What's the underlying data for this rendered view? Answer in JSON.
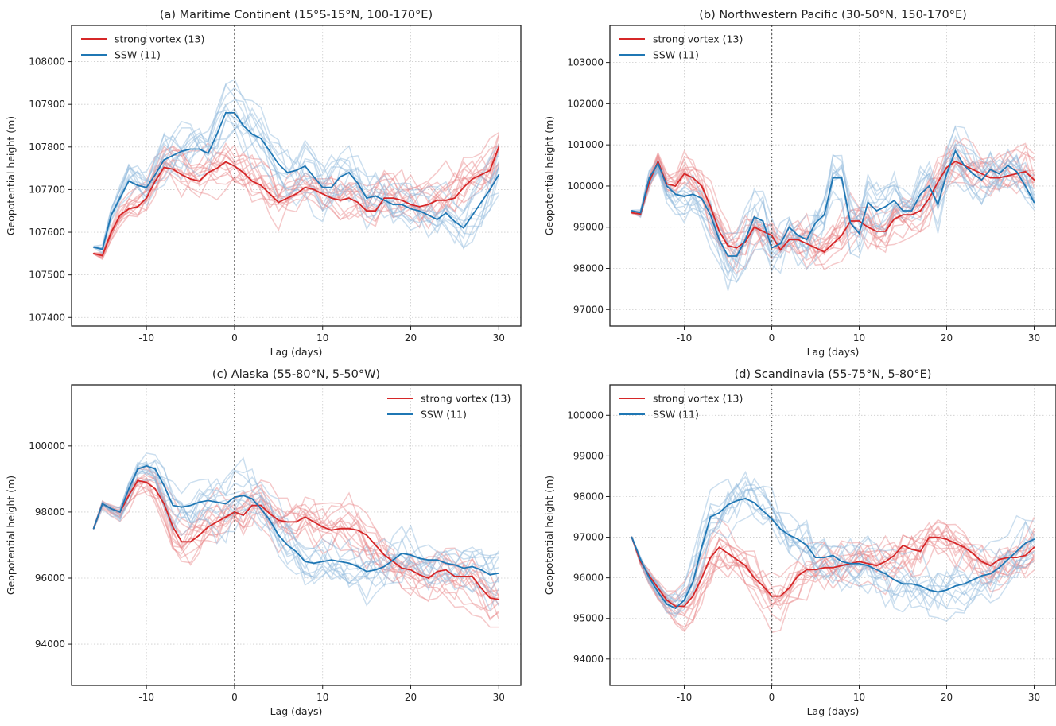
{
  "figure": {
    "xlabel": "Lag (days)",
    "ylabel": "Geopotential height (m)",
    "legend": {
      "strong_label": "strong vortex (13)",
      "ssw_label": "SSW (11)"
    },
    "colors": {
      "strong": "#d62728",
      "ssw": "#1f77b4",
      "strong_members": "#e8888a",
      "ssw_members": "#8fb8dc",
      "zero_line": "#666666",
      "grid": "#cccccc"
    }
  },
  "chart_data": [
    {
      "type": "line",
      "title": "(a) Maritime Continent (15°S-15°N, 100-170°E)",
      "xlabel": "Lag (days)",
      "ylabel": "Geopotential height (m)",
      "xlim": [
        -18.5,
        32.5
      ],
      "ylim": [
        107380,
        108085
      ],
      "xticks": [
        -10,
        0,
        10,
        20,
        30
      ],
      "yticks": [
        107400,
        107500,
        107600,
        107700,
        107800,
        107900,
        108000
      ],
      "grid": true,
      "legend_position": "top-left",
      "x": [
        -16,
        -15,
        -14,
        -13,
        -12,
        -11,
        -10,
        -9,
        -8,
        -7,
        -6,
        -5,
        -4,
        -3,
        -2,
        -1,
        0,
        1,
        2,
        3,
        4,
        5,
        6,
        7,
        8,
        9,
        10,
        11,
        12,
        13,
        14,
        15,
        16,
        17,
        18,
        19,
        20,
        21,
        22,
        23,
        24,
        25,
        26,
        27,
        28,
        29,
        30
      ],
      "series": [
        {
          "name": "strong vortex (13)",
          "values": [
            107550,
            107545,
            107600,
            107640,
            107655,
            107660,
            107680,
            107720,
            107752,
            107748,
            107735,
            107725,
            107720,
            107740,
            107750,
            107765,
            107755,
            107740,
            107720,
            107710,
            107690,
            107670,
            107680,
            107690,
            107705,
            107700,
            107690,
            107680,
            107675,
            107680,
            107670,
            107650,
            107650,
            107680,
            107680,
            107675,
            107665,
            107660,
            107665,
            107675,
            107675,
            107680,
            107705,
            107725,
            107735,
            107745,
            107800
          ]
        },
        {
          "name": "SSW (11)",
          "values": [
            107565,
            107560,
            107640,
            107680,
            107720,
            107710,
            107705,
            107735,
            107770,
            107780,
            107790,
            107795,
            107795,
            107785,
            107830,
            107880,
            107880,
            107850,
            107830,
            107820,
            107790,
            107760,
            107740,
            107745,
            107755,
            107730,
            107705,
            107705,
            107730,
            107740,
            107715,
            107680,
            107685,
            107675,
            107665,
            107665,
            107655,
            107650,
            107640,
            107630,
            107645,
            107625,
            107610,
            107640,
            107670,
            107700,
            107735
          ]
        }
      ]
    },
    {
      "type": "line",
      "title": "(b) Northwestern Pacific (30-50°N, 150-170°E)",
      "xlabel": "Lag (days)",
      "ylabel": "Geopotential height (m)",
      "xlim": [
        -18.5,
        32.5
      ],
      "ylim": [
        96600,
        103900
      ],
      "xticks": [
        -10,
        0,
        10,
        20,
        30
      ],
      "yticks": [
        97000,
        98000,
        99000,
        100000,
        101000,
        102000,
        103000
      ],
      "grid": true,
      "legend_position": "top-left",
      "x": [
        -16,
        -15,
        -14,
        -13,
        -12,
        -11,
        -10,
        -9,
        -8,
        -7,
        -6,
        -5,
        -4,
        -3,
        -2,
        -1,
        0,
        1,
        2,
        3,
        4,
        5,
        6,
        7,
        8,
        9,
        10,
        11,
        12,
        13,
        14,
        15,
        16,
        17,
        18,
        19,
        20,
        21,
        22,
        23,
        24,
        25,
        26,
        27,
        28,
        29,
        30
      ],
      "series": [
        {
          "name": "strong vortex (13)",
          "values": [
            99350,
            99320,
            100100,
            100600,
            100050,
            100000,
            100300,
            100200,
            100000,
            99500,
            98900,
            98550,
            98500,
            98650,
            99000,
            98900,
            98800,
            98450,
            98700,
            98700,
            98600,
            98500,
            98400,
            98600,
            98800,
            99150,
            99150,
            99000,
            98900,
            98900,
            99200,
            99300,
            99300,
            99400,
            99700,
            100100,
            100450,
            100600,
            100500,
            100400,
            100300,
            100200,
            100200,
            100250,
            100300,
            100350,
            100150
          ]
        },
        {
          "name": "SSW (11)",
          "values": [
            99400,
            99350,
            100200,
            100550,
            100000,
            99800,
            99750,
            99800,
            99700,
            99300,
            98700,
            98300,
            98300,
            98700,
            99250,
            99150,
            98500,
            98600,
            99000,
            98800,
            98700,
            99100,
            99300,
            100200,
            100200,
            99100,
            98850,
            99600,
            99400,
            99500,
            99650,
            99400,
            99400,
            99800,
            100000,
            99550,
            100300,
            100850,
            100500,
            100300,
            100150,
            100400,
            100300,
            100500,
            100350,
            100000,
            99600
          ]
        }
      ]
    },
    {
      "type": "line",
      "title": "(c) Alaska (55-80°N, 5-50°W)",
      "xlabel": "Lag (days)",
      "ylabel": "Geopotential height (m)",
      "xlim": [
        -18.5,
        32.5
      ],
      "ylim": [
        92750,
        101850
      ],
      "xticks": [
        -10,
        0,
        10,
        20,
        30
      ],
      "yticks": [
        94000,
        96000,
        98000,
        100000
      ],
      "grid": true,
      "legend_position": "top-right",
      "x": [
        -16,
        -15,
        -14,
        -13,
        -12,
        -11,
        -10,
        -9,
        -8,
        -7,
        -6,
        -5,
        -4,
        -3,
        -2,
        -1,
        0,
        1,
        2,
        3,
        4,
        5,
        6,
        7,
        8,
        9,
        10,
        11,
        12,
        13,
        14,
        15,
        16,
        17,
        18,
        19,
        20,
        21,
        22,
        23,
        24,
        25,
        26,
        27,
        28,
        29,
        30
      ],
      "series": [
        {
          "name": "strong vortex (13)",
          "values": [
            97500,
            98250,
            98100,
            98000,
            98500,
            98950,
            98900,
            98700,
            98250,
            97550,
            97100,
            97100,
            97300,
            97550,
            97700,
            97850,
            98000,
            97900,
            98200,
            98200,
            97950,
            97750,
            97700,
            97700,
            97850,
            97700,
            97550,
            97450,
            97500,
            97500,
            97450,
            97300,
            97000,
            96700,
            96500,
            96300,
            96250,
            96100,
            96000,
            96200,
            96250,
            96050,
            96050,
            96050,
            95700,
            95400,
            95350
          ]
        },
        {
          "name": "SSW (11)",
          "values": [
            97500,
            98250,
            98100,
            98000,
            98700,
            99300,
            99400,
            99300,
            98800,
            98200,
            98150,
            98200,
            98300,
            98350,
            98300,
            98250,
            98450,
            98500,
            98400,
            98100,
            97750,
            97300,
            97000,
            96800,
            96500,
            96450,
            96500,
            96550,
            96500,
            96450,
            96350,
            96200,
            96250,
            96350,
            96550,
            96750,
            96700,
            96600,
            96550,
            96550,
            96450,
            96400,
            96300,
            96350,
            96250,
            96100,
            96150
          ]
        }
      ]
    },
    {
      "type": "line",
      "title": "(d) Scandinavia (55-75°N, 5-80°E)",
      "xlabel": "Lag (days)",
      "ylabel": "Geopotential height (m)",
      "xlim": [
        -18.5,
        32.5
      ],
      "ylim": [
        93350,
        100750
      ],
      "xticks": [
        -10,
        0,
        10,
        20,
        30
      ],
      "yticks": [
        94000,
        95000,
        96000,
        97000,
        98000,
        99000,
        100000
      ],
      "grid": true,
      "legend_position": "top-left",
      "x": [
        -16,
        -15,
        -14,
        -13,
        -12,
        -11,
        -10,
        -9,
        -8,
        -7,
        -6,
        -5,
        -4,
        -3,
        -2,
        -1,
        0,
        1,
        2,
        3,
        4,
        5,
        6,
        7,
        8,
        9,
        10,
        11,
        12,
        13,
        14,
        15,
        16,
        17,
        18,
        19,
        20,
        21,
        22,
        23,
        24,
        25,
        26,
        27,
        28,
        29,
        30
      ],
      "series": [
        {
          "name": "strong vortex (13)",
          "values": [
            97000,
            96400,
            96050,
            95750,
            95450,
            95300,
            95300,
            95550,
            96000,
            96500,
            96750,
            96600,
            96450,
            96300,
            96000,
            95800,
            95550,
            95550,
            95750,
            96050,
            96200,
            96200,
            96250,
            96250,
            96300,
            96350,
            96400,
            96350,
            96300,
            96400,
            96550,
            96800,
            96700,
            96650,
            97000,
            97000,
            96950,
            96850,
            96750,
            96600,
            96400,
            96300,
            96450,
            96500,
            96500,
            96550,
            96750
          ]
        },
        {
          "name": "SSW (11)",
          "values": [
            97000,
            96450,
            96000,
            95650,
            95350,
            95250,
            95450,
            95900,
            96750,
            97500,
            97600,
            97800,
            97900,
            97950,
            97850,
            97650,
            97450,
            97200,
            97050,
            96950,
            96800,
            96500,
            96500,
            96550,
            96400,
            96350,
            96350,
            96300,
            96200,
            96100,
            95950,
            95850,
            95850,
            95800,
            95700,
            95650,
            95700,
            95800,
            95850,
            95950,
            96050,
            96100,
            96250,
            96450,
            96650,
            96850,
            96950
          ]
        }
      ]
    }
  ]
}
